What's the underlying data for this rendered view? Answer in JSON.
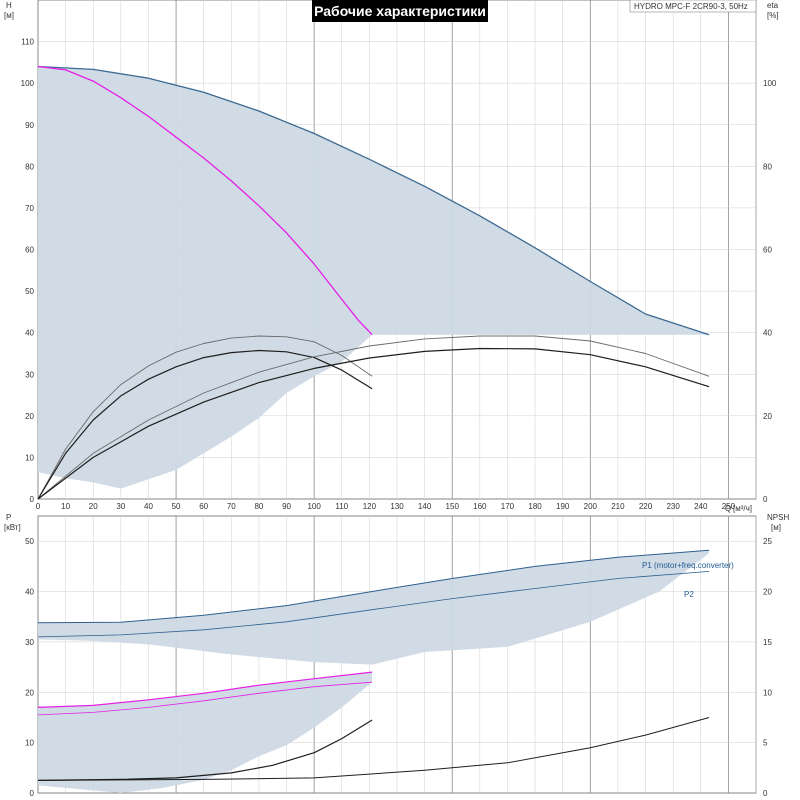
{
  "header": {
    "title": "Рабочие характеристики",
    "model": "HYDRO MPC-F 2CR90-3, 50Hz"
  },
  "axes": {
    "h_name": "H",
    "h_unit": "[м]",
    "eta_name": "eta",
    "eta_unit": "[%]",
    "q_name": "Q",
    "q_unit": "[м³/ч]",
    "p_name": "P",
    "p_unit": "[кВт]",
    "npsh_name": "NPSH",
    "npsh_unit": "[м]"
  },
  "colors": {
    "area": "#cdd9e5",
    "envelope": "#3c6a92",
    "magenta": "#e61ee6",
    "dark": "#1e1e1e",
    "gray": "#6a6a6a",
    "blue": "#2f5f8f",
    "title_bg": "#000000",
    "grid": "#cfcfcf"
  },
  "chart_data": [
    {
      "id": "top",
      "type": "line",
      "xlim": [
        0,
        260
      ],
      "ylim": [
        0,
        120
      ],
      "y2lim": [
        0,
        120
      ],
      "x_ticks": [
        "0",
        "10",
        "20",
        "30",
        "40",
        "50",
        "60",
        "70",
        "80",
        "90",
        "100",
        "110",
        "120",
        "130",
        "140",
        "150",
        "160",
        "170",
        "180",
        "190",
        "200",
        "210",
        "220",
        "230",
        "240",
        "250"
      ],
      "x_tick_values": [
        0,
        10,
        20,
        30,
        40,
        50,
        60,
        70,
        80,
        90,
        100,
        110,
        120,
        130,
        140,
        150,
        160,
        170,
        180,
        190,
        200,
        210,
        220,
        230,
        240,
        250
      ],
      "y_ticks": [
        "0",
        "10",
        "20",
        "30",
        "40",
        "50",
        "60",
        "70",
        "80",
        "90",
        "100",
        "110"
      ],
      "y_tick_values": [
        0,
        10,
        20,
        30,
        40,
        50,
        60,
        70,
        80,
        90,
        100,
        110
      ],
      "y2_ticks": [
        "0",
        "20",
        "40",
        "60",
        "80",
        "100"
      ],
      "y2_tick_values": [
        0,
        20,
        40,
        60,
        80,
        100
      ],
      "areas": [
        {
          "name": "",
          "points": [
            [
              0,
              104
            ],
            [
              20,
              103.3
            ],
            [
              40,
              101.2
            ],
            [
              60,
              97.8
            ],
            [
              80,
              93.3
            ],
            [
              100,
              87.9
            ],
            [
              120,
              81.7
            ],
            [
              140,
              75.2
            ],
            [
              160,
              68.1
            ],
            [
              180,
              60.4
            ],
            [
              200,
              52.3
            ],
            [
              220,
              44.5
            ],
            [
              243,
              39.5
            ],
            [
              121,
              39.5
            ],
            [
              110,
              33
            ],
            [
              100,
              29.5
            ],
            [
              90,
              25.5
            ],
            [
              80,
              19.5
            ],
            [
              70,
              15
            ],
            [
              60,
              11
            ],
            [
              50,
              7
            ],
            [
              30,
              2.5
            ],
            [
              20,
              4
            ],
            [
              10,
              5
            ],
            [
              0,
              6.5
            ]
          ]
        }
      ],
      "series": [
        {
          "name": "",
          "color": "envelope",
          "width": 1.3,
          "points": [
            [
              0,
              104
            ],
            [
              20,
              103.3
            ],
            [
              40,
              101.2
            ],
            [
              60,
              97.8
            ],
            [
              80,
              93.3
            ],
            [
              100,
              87.9
            ],
            [
              120,
              81.7
            ],
            [
              140,
              75.2
            ],
            [
              160,
              68.1
            ],
            [
              180,
              60.4
            ],
            [
              200,
              52.3
            ],
            [
              220,
              44.5
            ],
            [
              243,
              39.5
            ]
          ]
        },
        {
          "name": "",
          "color": "magenta",
          "width": 1.3,
          "points": [
            [
              0,
              104
            ],
            [
              10,
              103.2
            ],
            [
              20,
              100.5
            ],
            [
              30,
              96.5
            ],
            [
              40,
              92
            ],
            [
              50,
              87
            ],
            [
              60,
              82
            ],
            [
              70,
              76.5
            ],
            [
              80,
              70.5
            ],
            [
              90,
              64
            ],
            [
              100,
              56.5
            ],
            [
              110,
              48
            ],
            [
              116,
              43
            ],
            [
              121,
              39.5
            ]
          ]
        },
        {
          "name": "",
          "color": "gray",
          "width": 0.9,
          "points": [
            [
              0,
              0
            ],
            [
              10,
              12
            ],
            [
              20,
              21
            ],
            [
              30,
              27.5
            ],
            [
              40,
              32
            ],
            [
              50,
              35.3
            ],
            [
              60,
              37.4
            ],
            [
              70,
              38.7
            ],
            [
              80,
              39.2
            ],
            [
              90,
              39
            ],
            [
              100,
              37.8
            ],
            [
              110,
              34.5
            ],
            [
              121,
              29.5
            ]
          ]
        },
        {
          "name": "",
          "color": "dark",
          "width": 1.2,
          "points": [
            [
              0,
              0
            ],
            [
              10,
              11
            ],
            [
              20,
              19
            ],
            [
              30,
              24.8
            ],
            [
              40,
              28.8
            ],
            [
              50,
              31.8
            ],
            [
              60,
              34
            ],
            [
              70,
              35.2
            ],
            [
              80,
              35.7
            ],
            [
              90,
              35.4
            ],
            [
              100,
              34
            ],
            [
              110,
              31
            ],
            [
              121,
              26.5
            ]
          ]
        },
        {
          "name": "",
          "color": "gray",
          "width": 0.9,
          "points": [
            [
              0,
              0
            ],
            [
              20,
              11
            ],
            [
              40,
              19
            ],
            [
              60,
              25.5
            ],
            [
              80,
              30.5
            ],
            [
              100,
              34.2
            ],
            [
              120,
              36.8
            ],
            [
              140,
              38.5
            ],
            [
              160,
              39.2
            ],
            [
              180,
              39.2
            ],
            [
              200,
              38
            ],
            [
              220,
              35
            ],
            [
              243,
              29.5
            ]
          ]
        },
        {
          "name": "",
          "color": "dark",
          "width": 1.2,
          "points": [
            [
              0,
              0
            ],
            [
              20,
              10
            ],
            [
              40,
              17.5
            ],
            [
              60,
              23.3
            ],
            [
              80,
              28
            ],
            [
              100,
              31.4
            ],
            [
              120,
              33.9
            ],
            [
              140,
              35.5
            ],
            [
              160,
              36.2
            ],
            [
              180,
              36.1
            ],
            [
              200,
              34.7
            ],
            [
              220,
              31.8
            ],
            [
              243,
              27
            ]
          ]
        }
      ]
    },
    {
      "id": "bottom",
      "type": "line",
      "xlim": [
        0,
        260
      ],
      "ylim": [
        0,
        55
      ],
      "y2lim": [
        0,
        27.5
      ],
      "y_ticks": [
        "0",
        "10",
        "20",
        "30",
        "40",
        "50"
      ],
      "y_tick_values": [
        0,
        10,
        20,
        30,
        40,
        50
      ],
      "y2_ticks": [
        "0",
        "5",
        "10",
        "15",
        "20",
        "25"
      ],
      "y2_tick_values": [
        0,
        5,
        10,
        15,
        20,
        25
      ],
      "areas": [
        {
          "name": "",
          "points": [
            [
              0,
              33.8
            ],
            [
              30,
              33.9
            ],
            [
              60,
              35.3
            ],
            [
              90,
              37.2
            ],
            [
              121,
              40
            ],
            [
              150,
              42.6
            ],
            [
              180,
              45
            ],
            [
              210,
              46.8
            ],
            [
              243,
              48.2
            ],
            [
              243,
              47.6
            ],
            [
              225,
              40
            ],
            [
              200,
              34
            ],
            [
              170,
              29
            ],
            [
              140,
              28
            ],
            [
              121,
              25.5
            ],
            [
              100,
              26
            ],
            [
              70,
              27.5
            ],
            [
              40,
              29.5
            ],
            [
              20,
              30.2
            ],
            [
              0,
              30.5
            ]
          ]
        },
        {
          "name": "",
          "points": [
            [
              0,
              17
            ],
            [
              20,
              17.4
            ],
            [
              40,
              18.5
            ],
            [
              60,
              19.8
            ],
            [
              80,
              21.4
            ],
            [
              100,
              22.7
            ],
            [
              121,
              24
            ],
            [
              121,
              22
            ],
            [
              110,
              17
            ],
            [
              100,
              13
            ],
            [
              90,
              9.5
            ],
            [
              80,
              7.3
            ],
            [
              70,
              4.5
            ],
            [
              60,
              2.6
            ],
            [
              45,
              1
            ],
            [
              30,
              0
            ],
            [
              0,
              1.5
            ]
          ]
        }
      ],
      "series": [
        {
          "name": "P1 (motor+freq.converter)",
          "color": "blue",
          "width": 1.0,
          "points": [
            [
              0,
              33.8
            ],
            [
              30,
              33.9
            ],
            [
              60,
              35.3
            ],
            [
              90,
              37.2
            ],
            [
              121,
              40
            ],
            [
              150,
              42.6
            ],
            [
              180,
              45
            ],
            [
              210,
              46.8
            ],
            [
              243,
              48.2
            ]
          ]
        },
        {
          "name": "P2",
          "color": "blue",
          "width": 0.8,
          "points": [
            [
              0,
              31
            ],
            [
              30,
              31.4
            ],
            [
              60,
              32.4
            ],
            [
              90,
              34
            ],
            [
              121,
              36.4
            ],
            [
              150,
              38.6
            ],
            [
              180,
              40.6
            ],
            [
              210,
              42.6
            ],
            [
              243,
              44
            ]
          ]
        },
        {
          "name": "",
          "color": "magenta",
          "width": 1.2,
          "points": [
            [
              0,
              17
            ],
            [
              20,
              17.4
            ],
            [
              40,
              18.5
            ],
            [
              60,
              19.8
            ],
            [
              80,
              21.4
            ],
            [
              100,
              22.7
            ],
            [
              121,
              24
            ]
          ]
        },
        {
          "name": "",
          "color": "magenta",
          "width": 0.8,
          "points": [
            [
              0,
              15.5
            ],
            [
              20,
              16
            ],
            [
              40,
              17
            ],
            [
              60,
              18.3
            ],
            [
              80,
              19.8
            ],
            [
              100,
              21.1
            ],
            [
              121,
              22
            ]
          ]
        },
        {
          "name": "",
          "color": "dark",
          "width": 1.2,
          "axis": "y2",
          "points": [
            [
              0,
              1.25
            ],
            [
              30,
              1.35
            ],
            [
              50,
              1.5
            ],
            [
              70,
              2
            ],
            [
              85,
              2.75
            ],
            [
              100,
              4
            ],
            [
              110,
              5.4
            ],
            [
              121,
              7.25
            ]
          ]
        },
        {
          "name": "",
          "color": "dark",
          "width": 1.0,
          "axis": "y2",
          "points": [
            [
              0,
              1.25
            ],
            [
              60,
              1.35
            ],
            [
              100,
              1.5
            ],
            [
              140,
              2.25
            ],
            [
              170,
              3
            ],
            [
              200,
              4.5
            ],
            [
              220,
              5.75
            ],
            [
              243,
              7.5
            ]
          ]
        }
      ]
    }
  ]
}
